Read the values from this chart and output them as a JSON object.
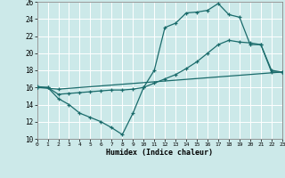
{
  "xlabel": "Humidex (Indice chaleur)",
  "xlim": [
    0,
    23
  ],
  "ylim": [
    10,
    26
  ],
  "yticks": [
    10,
    12,
    14,
    16,
    18,
    20,
    22,
    24,
    26
  ],
  "xticks": [
    0,
    1,
    2,
    3,
    4,
    5,
    6,
    7,
    8,
    9,
    10,
    11,
    12,
    13,
    14,
    15,
    16,
    17,
    18,
    19,
    20,
    21,
    22,
    23
  ],
  "bg_color": "#cce9e9",
  "grid_color": "#ffffff",
  "line_color": "#1a6b6b",
  "line1_x": [
    0,
    1,
    2,
    3,
    4,
    5,
    6,
    7,
    8,
    9,
    10,
    11,
    12,
    13,
    14,
    15,
    16,
    17,
    18,
    19,
    20,
    21,
    22,
    23
  ],
  "line1_y": [
    16.1,
    16.0,
    14.7,
    14.0,
    13.0,
    12.5,
    12.0,
    11.3,
    10.5,
    13.0,
    16.0,
    18.0,
    23.0,
    23.5,
    24.7,
    24.8,
    25.0,
    25.8,
    24.5,
    24.2,
    21.0,
    21.0,
    17.8,
    17.8
  ],
  "line2_x": [
    0,
    2,
    23
  ],
  "line2_y": [
    16.0,
    15.8,
    17.8
  ],
  "line3_x": [
    0,
    1,
    2,
    3,
    4,
    5,
    6,
    7,
    8,
    9,
    10,
    11,
    12,
    13,
    14,
    15,
    16,
    17,
    18,
    19,
    20,
    21,
    22,
    23
  ],
  "line3_y": [
    16.0,
    16.0,
    15.2,
    15.3,
    15.4,
    15.5,
    15.6,
    15.7,
    15.7,
    15.8,
    16.0,
    16.5,
    17.0,
    17.5,
    18.2,
    19.0,
    20.0,
    21.0,
    21.5,
    21.3,
    21.2,
    21.0,
    18.0,
    17.8
  ]
}
